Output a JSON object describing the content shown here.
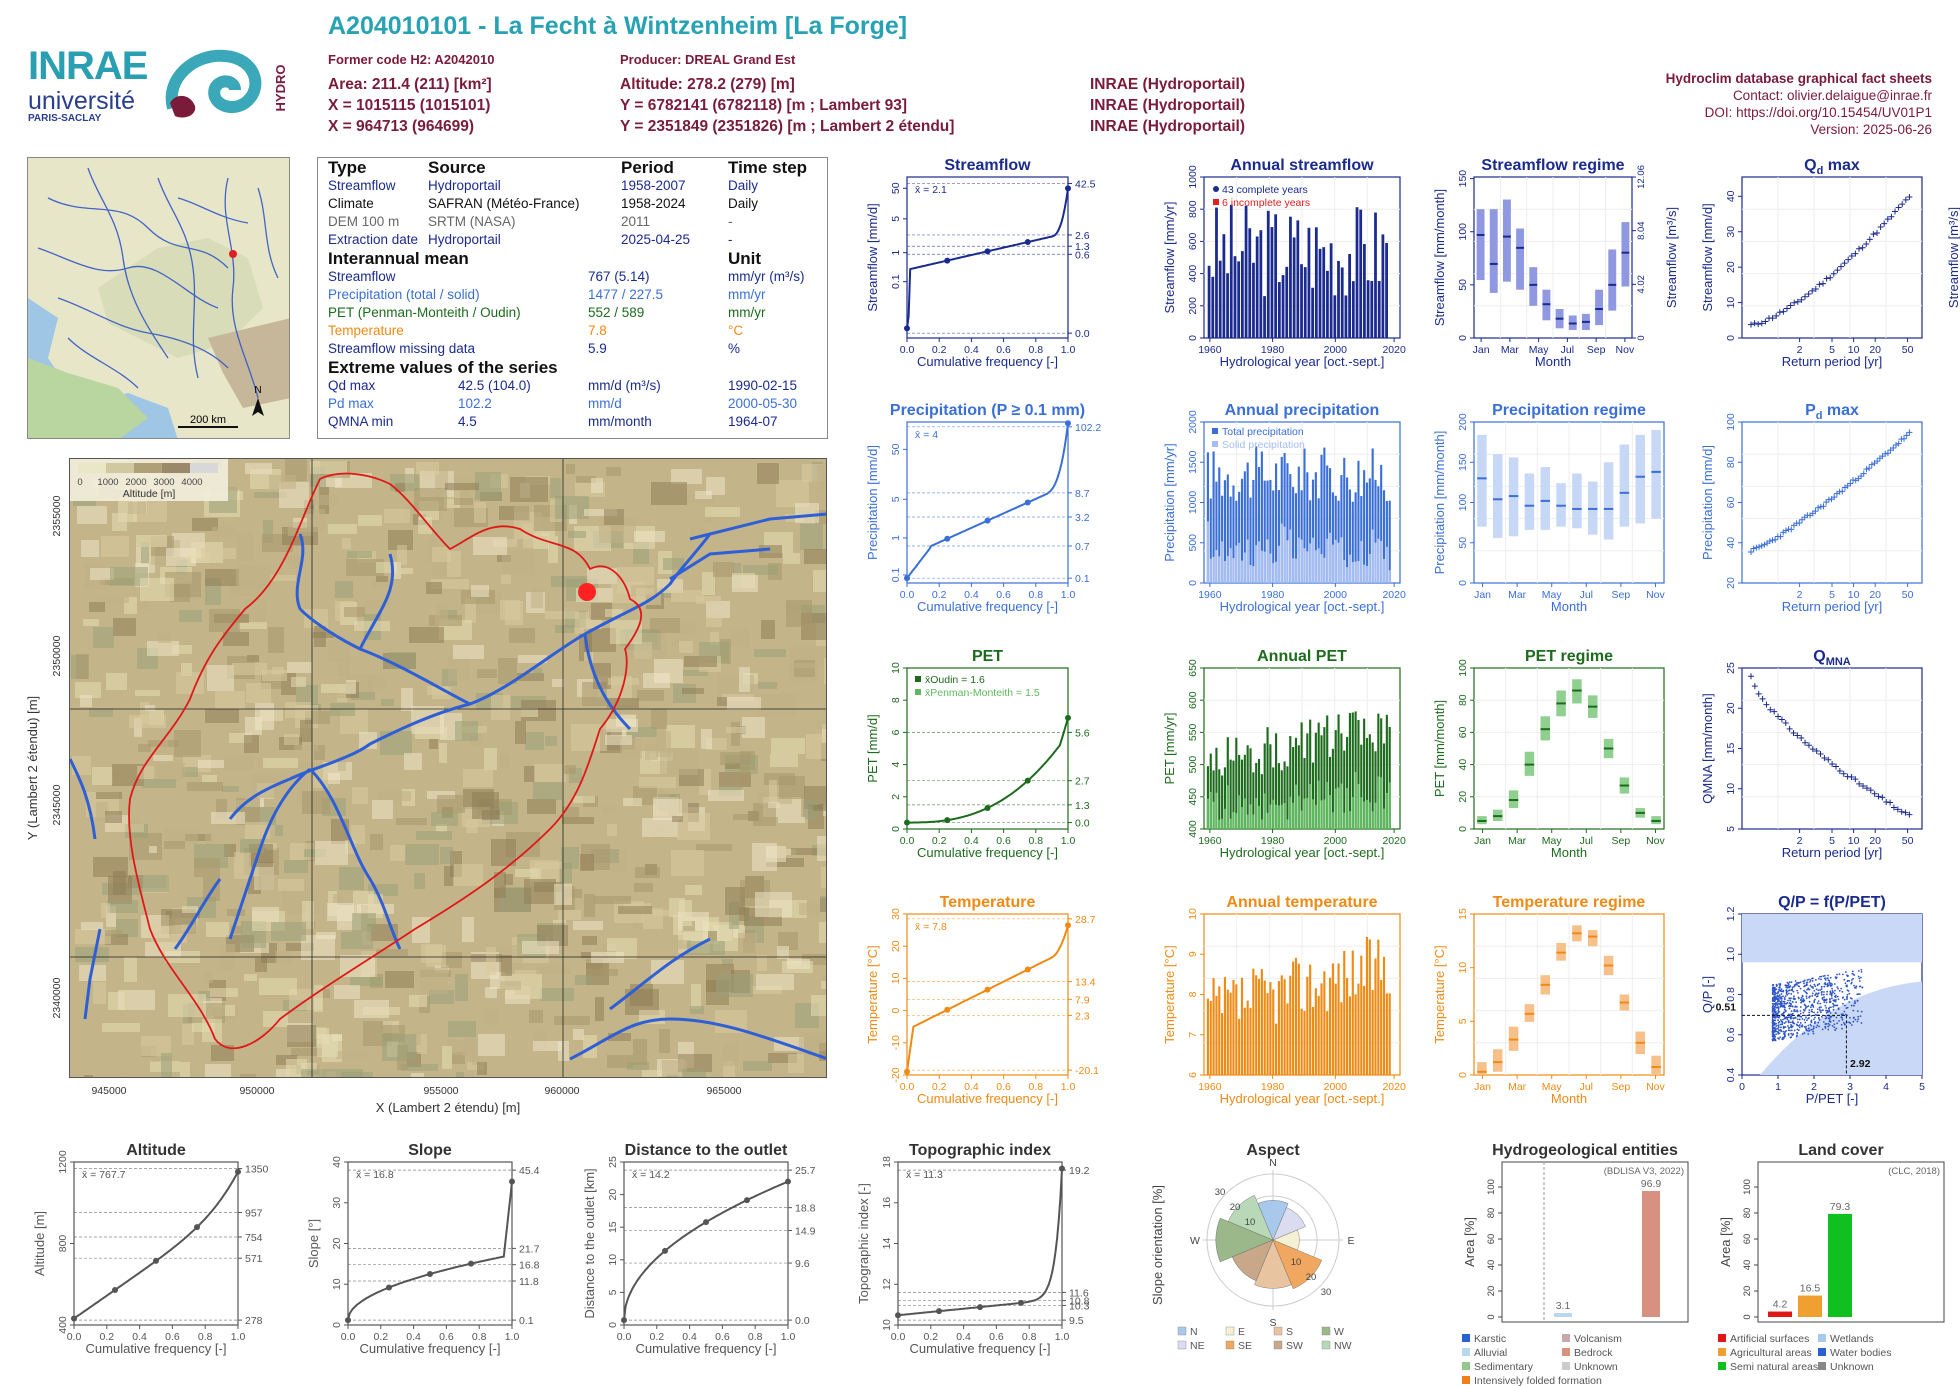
{
  "header": {
    "title": "A204010101 - La Fecht à Wintzenheim [La Forge]",
    "former_code": "Former code H2: A2042010",
    "producer": "Producer: DREAL Grand Est",
    "area": "Area: 211.4 (211) [km²]",
    "altitude": "Altitude: 278.2 (279) [m]",
    "x93": "X = 1015115 (1015101)",
    "y93": "Y = 6782141 (6782118) [m ; Lambert 93]",
    "x2": "X = 964713 (964699)",
    "y2": "Y = 2351849 (2351826) [m ; Lambert 2 étendu]",
    "src1": "INRAE (Hydroportail)",
    "src2": "INRAE (Hydroportail)",
    "src3": "INRAE (Hydroportail)",
    "db_title": "Hydroclim database graphical fact sheets",
    "contact": "Contact: olivier.delaigue@inrae.fr",
    "doi": "DOI: https://doi.org/10.15454/UV01P1",
    "version": "Version: 2025-06-26"
  },
  "logos": {
    "inrae": "INRAE",
    "universite": "université",
    "paris_saclay": "PARIS-SACLAY",
    "hydro": "HYDRO"
  },
  "overview_map": {
    "scale": "200 km",
    "north": "N"
  },
  "info": {
    "col_type": "Type",
    "col_source": "Source",
    "col_period": "Period",
    "col_timestep": "Time step",
    "rows": [
      {
        "type": "Streamflow",
        "source": "Hydroportail",
        "period": "1958-2007",
        "step": "Daily",
        "color": "#1a2a8f"
      },
      {
        "type": "Climate",
        "source": "SAFRAN (Météo-France)",
        "period": "1958-2024",
        "step": "Daily",
        "color": "#111111"
      },
      {
        "type": "DEM 100 m",
        "source": "SRTM (NASA)",
        "period": "2011",
        "step": "-",
        "color": "#666666"
      },
      {
        "type": "Extraction date",
        "source": "Hydroportail",
        "period": "2025-04-25",
        "step": "-",
        "color": "#1a2a8f"
      }
    ],
    "interannual_title": "Interannual mean",
    "unit_title": "Unit",
    "means": [
      {
        "label": "Streamflow",
        "value": "767 (5.14)",
        "unit": "mm/yr (m³/s)",
        "color": "#1a2a8f"
      },
      {
        "label": "Precipitation (total / solid)",
        "value": "1477 / 227.5",
        "unit": "mm/yr",
        "color": "#3a6fd8"
      },
      {
        "label": "PET (Penman-Monteith / Oudin)",
        "value": "552 / 589",
        "unit": "mm/yr",
        "color": "#1d6b1d"
      },
      {
        "label": "Temperature",
        "value": "7.8",
        "unit": "°C",
        "color": "#ef8a14"
      },
      {
        "label": "Streamflow missing data",
        "value": "5.9",
        "unit": "%",
        "color": "#1a2a8f"
      }
    ],
    "extreme_title": "Extreme values of the series",
    "extremes": [
      {
        "label": "Qd max",
        "value": "42.5 (104.0)",
        "unit": "mm/d (m³/s)",
        "date": "1990-02-15",
        "color": "#1a2a8f"
      },
      {
        "label": "Pd max",
        "value": "102.2",
        "unit": "mm/d",
        "date": "2000-05-30",
        "color": "#3a6fd8"
      },
      {
        "label": "QMNA min",
        "value": "4.5",
        "unit": "mm/month",
        "date": "1964-07",
        "color": "#1a2a8f"
      }
    ]
  },
  "basin_map": {
    "legend_ticks": [
      "0",
      "1000",
      "2000",
      "3000",
      "4000"
    ],
    "legend_title": "Altitude [m]",
    "x_ticks": [
      "945000",
      "950000",
      "955000",
      "960000",
      "965000"
    ],
    "y_ticks": [
      "2355000",
      "2350000",
      "2345000",
      "2340000"
    ],
    "xlabel": "X (Lambert 2 étendu) [m]",
    "ylabel": "Y (Lambert 2 étendu) [m]"
  },
  "colors": {
    "streamflow": "#1a2a8f",
    "precip": "#3a6fd8",
    "pet_dark": "#1d6b1d",
    "pet_light": "#5eb85e",
    "temp": "#ef8a14",
    "gray": "#555555",
    "purple": "#7a3b8f"
  },
  "chart_data": [
    {
      "id": "streamflow",
      "type": "line",
      "title": "Streamflow",
      "xlabel": "Cumulative frequency [-]",
      "ylabel": "Streamflow [mm/d]",
      "mean_label": "x̄ = 2.1",
      "ticks_left": [
        "0.1",
        "1",
        "5",
        "50"
      ],
      "ticks_right": [
        "42.5",
        "2.6",
        "1.3",
        "0.6",
        "0.0"
      ],
      "x_ticks": [
        "0.0",
        "0.2",
        "0.4",
        "0.6",
        "0.8",
        "1.0"
      ],
      "ylabel_right": ""
    },
    {
      "id": "annual_streamflow",
      "type": "bar",
      "title": "Annual streamflow",
      "xlabel": "Hydrological year [oct.-sept.]",
      "ylabel": "Streamflow [mm/yr]",
      "legend": [
        "43 complete years",
        "6 incomplete years"
      ],
      "ticks_left": [
        "0",
        "200",
        "400",
        "600",
        "800",
        "1000"
      ],
      "x_ticks": [
        "1960",
        "1980",
        "2000",
        "2020"
      ]
    },
    {
      "id": "streamflow_regime",
      "type": "bar",
      "title": "Streamflow regime",
      "xlabel": "Month",
      "ylabel": "Streamflow [mm/month]",
      "ylabel_right": "Streamflow [m³/s]",
      "ticks_left": [
        "0",
        "50",
        "100",
        "150"
      ],
      "ticks_right": [
        "0",
        "4.02",
        "8.04",
        "12.06"
      ],
      "x_ticks": [
        "Jan",
        "Mar",
        "May",
        "Jul",
        "Sep",
        "Nov"
      ]
    },
    {
      "id": "qd_max",
      "type": "scatter",
      "title": "Qd max",
      "xlabel": "Return period [yr]",
      "ylabel": "Streamflow [mm/d]",
      "ylabel_right": "Streamflow [m³/s]",
      "ticks_left": [
        "0",
        "10",
        "20",
        "30",
        "40"
      ],
      "x_ticks": [
        "2",
        "5",
        "10",
        "20",
        "50"
      ]
    },
    {
      "id": "precipitation",
      "type": "line",
      "title": "Precipitation (P ≥ 0.1 mm)",
      "xlabel": "Cumulative frequency [-]",
      "ylabel": "Precipitation [mm/d]",
      "mean_label": "x̄ = 4",
      "ticks_left": [
        "0.1",
        "1",
        "5",
        "50"
      ],
      "ticks_right": [
        "102.2",
        "8.7",
        "3.2",
        "0.7",
        "0.1"
      ],
      "x_ticks": [
        "0.0",
        "0.2",
        "0.4",
        "0.6",
        "0.8",
        "1.0"
      ]
    },
    {
      "id": "annual_precipitation",
      "type": "bar",
      "title": "Annual precipitation",
      "xlabel": "Hydrological year [oct.-sept.]",
      "ylabel": "Precipitation [mm/yr]",
      "legend": [
        "Total precipitation",
        "Solid precipitation"
      ],
      "ticks_left": [
        "0",
        "500",
        "1000",
        "1500",
        "2000"
      ],
      "x_ticks": [
        "1960",
        "1980",
        "2000",
        "2020"
      ]
    },
    {
      "id": "precipitation_regime",
      "type": "bar",
      "title": "Precipitation regime",
      "xlabel": "Month",
      "ylabel": "Precipitation [mm/month]",
      "ticks_left": [
        "0",
        "50",
        "100",
        "150",
        "200"
      ],
      "x_ticks": [
        "Jan",
        "Mar",
        "May",
        "Jul",
        "Sep",
        "Nov"
      ]
    },
    {
      "id": "pd_max",
      "type": "scatter",
      "title": "Pd max",
      "xlabel": "Return period [yr]",
      "ylabel": "Precipitation [mm/d]",
      "ticks_left": [
        "20",
        "40",
        "60",
        "80",
        "100"
      ],
      "x_ticks": [
        "2",
        "5",
        "10",
        "20",
        "50"
      ]
    },
    {
      "id": "pet",
      "type": "line",
      "title": "PET",
      "xlabel": "Cumulative frequency [-]",
      "ylabel": "PET [mm/d]",
      "legend": [
        "x̄Oudin = 1.6",
        "x̄Penman-Monteith = 1.5"
      ],
      "ticks_left": [
        "0",
        "2",
        "4",
        "6",
        "8",
        "10"
      ],
      "ticks_right": [
        "5.6",
        "2.7",
        "1.3",
        "0.0"
      ],
      "x_ticks": [
        "0.0",
        "0.2",
        "0.4",
        "0.6",
        "0.8",
        "1.0"
      ]
    },
    {
      "id": "annual_pet",
      "type": "bar",
      "title": "Annual PET",
      "xlabel": "Hydrological year [oct.-sept.]",
      "ylabel": "PET [mm/yr]",
      "ticks_left": [
        "400",
        "450",
        "500",
        "550",
        "600",
        "650"
      ],
      "x_ticks": [
        "1960",
        "1980",
        "2000",
        "2020"
      ]
    },
    {
      "id": "pet_regime",
      "type": "bar",
      "title": "PET regime",
      "xlabel": "Month",
      "ylabel": "PET [mm/month]",
      "ticks_left": [
        "0",
        "20",
        "40",
        "60",
        "80",
        "100"
      ],
      "x_ticks": [
        "Jan",
        "Mar",
        "May",
        "Jul",
        "Sep",
        "Nov"
      ]
    },
    {
      "id": "qmna",
      "type": "scatter",
      "title": "QMNA",
      "xlabel": "Return period [yr]",
      "ylabel": "QMNA [mm/month]",
      "ticks_left": [
        "5",
        "10",
        "15",
        "20",
        "25"
      ],
      "x_ticks": [
        "2",
        "5",
        "10",
        "20",
        "50"
      ]
    },
    {
      "id": "temperature",
      "type": "line",
      "title": "Temperature",
      "xlabel": "Cumulative frequency [-]",
      "ylabel": "Temperature [°C]",
      "mean_label": "x̄ = 7.8",
      "ticks_left": [
        "-20",
        "-10",
        "0",
        "10",
        "20",
        "30"
      ],
      "ticks_right": [
        "28.7",
        "13.4",
        "7.9",
        "2.3",
        "-20.1"
      ],
      "x_ticks": [
        "0.0",
        "0.2",
        "0.4",
        "0.6",
        "0.8",
        "1.0"
      ]
    },
    {
      "id": "annual_temperature",
      "type": "bar",
      "title": "Annual temperature",
      "xlabel": "Hydrological year [oct.-sept.]",
      "ylabel": "Temperature [°C]",
      "ticks_left": [
        "6",
        "7",
        "8",
        "9",
        "10"
      ],
      "x_ticks": [
        "1960",
        "1980",
        "2000",
        "2020"
      ]
    },
    {
      "id": "temperature_regime",
      "type": "bar",
      "title": "Temperature regime",
      "xlabel": "Month",
      "ylabel": "Temperature [°C]",
      "ticks_left": [
        "0",
        "5",
        "10",
        "15"
      ],
      "x_ticks": [
        "Jan",
        "Mar",
        "May",
        "Jul",
        "Sep",
        "Nov"
      ]
    },
    {
      "id": "qp_ppet",
      "type": "scatter",
      "title": "Q/P = f(P/PET)",
      "xlabel": "P/PET [-]",
      "ylabel": "Q/P [-]",
      "ticks_left": [
        "0.4",
        "0.6",
        "0.8",
        "1.0",
        "1.2"
      ],
      "x_ticks": [
        "0",
        "1",
        "2",
        "3",
        "4",
        "5"
      ],
      "annotations": [
        "0.51",
        "2.92"
      ]
    },
    {
      "id": "altitude",
      "type": "line",
      "title": "Altitude",
      "xlabel": "Cumulative frequency [-]",
      "ylabel": "Altitude [m]",
      "mean_label": "x̄ = 767.7",
      "ticks_left": [
        "400",
        "800",
        "1200"
      ],
      "ticks_right": [
        "1350",
        "957",
        "754",
        "571",
        "278"
      ],
      "x_ticks": [
        "0.0",
        "0.2",
        "0.4",
        "0.6",
        "0.8",
        "1.0"
      ]
    },
    {
      "id": "slope",
      "type": "line",
      "title": "Slope",
      "xlabel": "Cumulative frequency [-]",
      "ylabel": "Slope [°]",
      "mean_label": "x̄ = 16.8",
      "ticks_left": [
        "0",
        "10",
        "20",
        "30",
        "40"
      ],
      "ticks_right": [
        "45.4",
        "21.7",
        "16.8",
        "11.8",
        "0.1"
      ],
      "x_ticks": [
        "0.0",
        "0.2",
        "0.4",
        "0.6",
        "0.8",
        "1.0"
      ]
    },
    {
      "id": "distance",
      "type": "line",
      "title": "Distance to the outlet",
      "xlabel": "Cumulative frequency [-]",
      "ylabel": "Distance to the outlet [km]",
      "mean_label": "x̄ = 14.2",
      "ticks_left": [
        "0",
        "5",
        "10",
        "15",
        "20",
        "25"
      ],
      "ticks_right": [
        "25.7",
        "18.8",
        "14.9",
        "9.6",
        "0.0"
      ],
      "x_ticks": [
        "0.0",
        "0.2",
        "0.4",
        "0.6",
        "0.8",
        "1.0"
      ]
    },
    {
      "id": "topographic_index",
      "type": "line",
      "title": "Topographic index",
      "xlabel": "Cumulative frequency [-]",
      "ylabel": "Topographic index [-]",
      "mean_label": "x̄ = 11.3",
      "ticks_left": [
        "10",
        "12",
        "14",
        "16",
        "18"
      ],
      "ticks_right": [
        "19.2",
        "11.6",
        "10.8",
        "10.3",
        "9.5"
      ],
      "x_ticks": [
        "0.0",
        "0.2",
        "0.4",
        "0.6",
        "0.8",
        "1.0"
      ]
    },
    {
      "id": "aspect",
      "type": "pie",
      "title": "Aspect",
      "ylabel": "Slope orientation [%]",
      "directions": [
        "N",
        "E",
        "S",
        "W"
      ],
      "rings": [
        "10",
        "20",
        "30"
      ],
      "legend": [
        "N",
        "E",
        "S",
        "W",
        "NE",
        "SE",
        "SW",
        "NW"
      ]
    },
    {
      "id": "hydrogeology",
      "type": "bar",
      "title": "Hydrogeological entities",
      "ylabel": "Area [%]",
      "source": "(BDLISA V3, 2022)",
      "ticks_left": [
        "0",
        "20",
        "40",
        "60",
        "80",
        "100"
      ],
      "values": [
        {
          "label": "Alluvial",
          "value": 3.1
        },
        {
          "label": "Bedrock",
          "value": 96.9
        }
      ],
      "legend": [
        "Karstic",
        "Volcanism",
        "Alluvial",
        "Bedrock",
        "Sedimentary",
        "Unknown",
        "Intensively folded formation"
      ]
    },
    {
      "id": "land_cover",
      "type": "bar",
      "title": "Land cover",
      "ylabel": "Area [%]",
      "source": "(CLC, 2018)",
      "ticks_left": [
        "0",
        "20",
        "40",
        "60",
        "80",
        "100"
      ],
      "values": [
        {
          "label": "Artificial surfaces",
          "value": 4.2
        },
        {
          "label": "Agricultural areas",
          "value": 16.5
        },
        {
          "label": "Semi natural areas",
          "value": 79.3
        }
      ],
      "legend": [
        "Artificial surfaces",
        "Wetlands",
        "Agricultural areas",
        "Water bodies",
        "Semi natural areas",
        "Unknown"
      ]
    }
  ]
}
